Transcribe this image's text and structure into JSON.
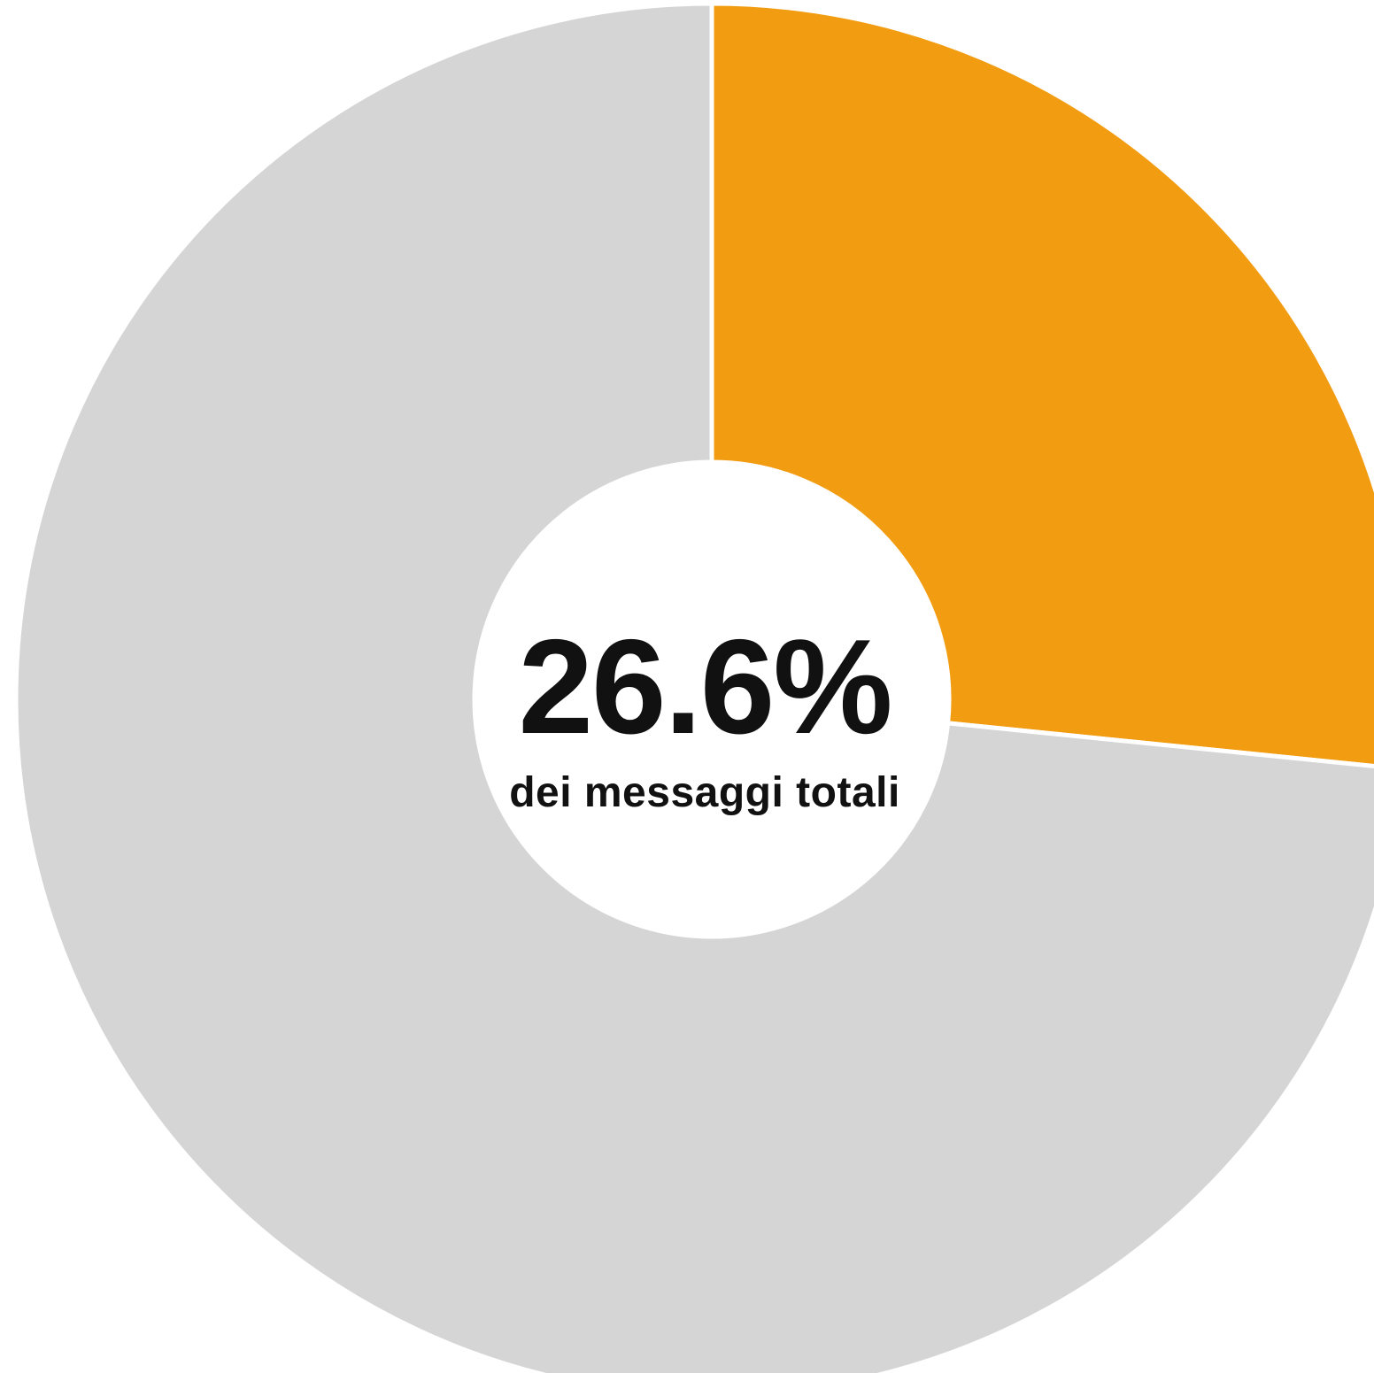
{
  "chart_data": {
    "type": "pie",
    "donut": true,
    "slices": [
      {
        "value": 26.6,
        "color": "#F29C12"
      },
      {
        "value": 73.4,
        "color": "#D5D5D5"
      }
    ],
    "start_angle_deg": 0,
    "direction": "clockwise",
    "center_value": "26.6%",
    "center_caption": "dei messaggi totali",
    "legend": "none"
  }
}
